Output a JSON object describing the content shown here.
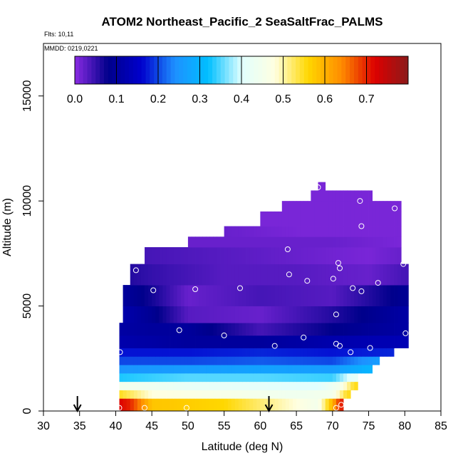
{
  "chart_data": {
    "type": "heatmap",
    "title": "ATOM2 Northeast_Pacific_2 SeaSaltFrac_PALMS",
    "flights_label": "Flts: 10,11",
    "dates_label": "MMDD: 0219,0221",
    "xlabel": "Latitude (deg N)",
    "ylabel": "Altitude (m)",
    "xlim": [
      30,
      85
    ],
    "ylim": [
      0,
      17500
    ],
    "x_ticks": [
      30,
      35,
      40,
      45,
      50,
      55,
      60,
      65,
      70,
      75,
      80,
      85
    ],
    "y_ticks": [
      0,
      5000,
      10000,
      15000
    ],
    "colorbar": {
      "min": 0.0,
      "max": 0.8,
      "tick_values": [
        0.0,
        0.1,
        0.2,
        0.3,
        0.4,
        0.5,
        0.6,
        0.7
      ],
      "tick_labels": [
        "0.0",
        "0.1",
        "0.2",
        "0.3",
        "0.4",
        "0.5",
        "0.6",
        "0.7"
      ]
    },
    "color_stops": [
      "#8a2be2",
      "#00008b",
      "#0000cd",
      "#1e90ff",
      "#00bfff",
      "#e0ffff",
      "#ffffe0",
      "#ffd700",
      "#ff8c00",
      "#dd0000",
      "#8b1a1a"
    ],
    "profiles": [
      {
        "name": "0-600 m",
        "values": [
          [
            40.5,
            0.72
          ],
          [
            42,
            0.7
          ],
          [
            45,
            0.58
          ],
          [
            50,
            0.57
          ],
          [
            55,
            0.56
          ],
          [
            60,
            0.52
          ],
          [
            65,
            0.48
          ],
          [
            68,
            0.45
          ],
          [
            70,
            0.6
          ],
          [
            71,
            0.7
          ]
        ]
      },
      {
        "name": "600-1000 m",
        "values": [
          [
            40.5,
            0.55
          ],
          [
            45,
            0.48
          ],
          [
            55,
            0.46
          ],
          [
            65,
            0.44
          ],
          [
            70,
            0.45
          ],
          [
            72,
            0.55
          ]
        ]
      },
      {
        "name": "1000-1400 m",
        "values": [
          [
            40.5,
            0.45
          ],
          [
            50,
            0.42
          ],
          [
            60,
            0.41
          ],
          [
            68,
            0.4
          ],
          [
            71,
            0.45
          ],
          [
            73,
            0.55
          ]
        ]
      },
      {
        "name": "1400-1800 m",
        "values": [
          [
            40.5,
            0.33
          ],
          [
            50,
            0.35
          ],
          [
            60,
            0.35
          ],
          [
            70,
            0.34
          ],
          [
            73,
            0.42
          ]
        ]
      },
      {
        "name": "1800-2200 m",
        "values": [
          [
            40.5,
            0.25
          ],
          [
            50,
            0.26
          ],
          [
            60,
            0.27
          ],
          [
            70,
            0.26
          ],
          [
            75,
            0.3
          ]
        ]
      },
      {
        "name": "2200-2600 m",
        "values": [
          [
            40.5,
            0.2
          ],
          [
            50,
            0.2
          ],
          [
            60,
            0.21
          ],
          [
            70,
            0.2
          ],
          [
            76,
            0.26
          ]
        ]
      },
      {
        "name": "2600-3000 m",
        "values": [
          [
            40.5,
            0.17
          ],
          [
            50,
            0.17
          ],
          [
            60,
            0.18
          ],
          [
            70,
            0.17
          ],
          [
            78,
            0.18
          ]
        ]
      },
      {
        "name": "3000-3600 m",
        "values": [
          [
            40.5,
            0.12
          ],
          [
            50,
            0.1
          ],
          [
            60,
            0.1
          ],
          [
            70,
            0.12
          ],
          [
            80,
            0.13
          ]
        ]
      },
      {
        "name": "3600-4200 m",
        "values": [
          [
            40.5,
            0.11
          ],
          [
            45,
            0.1
          ],
          [
            50,
            0.1
          ],
          [
            60,
            0.04
          ],
          [
            70,
            0.08
          ],
          [
            80,
            0.11
          ]
        ]
      },
      {
        "name": "4200-5000 m",
        "values": [
          [
            41,
            0.12
          ],
          [
            45,
            0.09
          ],
          [
            50,
            0.03
          ],
          [
            60,
            0.02
          ],
          [
            70,
            0.06
          ],
          [
            80,
            0.11
          ]
        ]
      },
      {
        "name": "5000-6000 m",
        "values": [
          [
            41,
            0.1
          ],
          [
            45,
            0.07
          ],
          [
            50,
            0.02
          ],
          [
            60,
            0.04
          ],
          [
            70,
            0.03
          ],
          [
            80,
            0.09
          ]
        ]
      },
      {
        "name": "6000-7000 m",
        "values": [
          [
            42,
            0.06
          ],
          [
            45,
            0.05
          ],
          [
            55,
            0.03
          ],
          [
            65,
            0.03
          ],
          [
            75,
            0.02
          ],
          [
            80,
            0.04
          ]
        ]
      },
      {
        "name": "7000-7800 m",
        "values": [
          [
            44,
            0.04
          ],
          [
            55,
            0.03
          ],
          [
            65,
            0.02
          ],
          [
            75,
            0.01
          ],
          [
            79,
            0.02
          ]
        ]
      },
      {
        "name": "7800-8300 m",
        "values": [
          [
            50,
            0.02
          ],
          [
            60,
            0.02
          ],
          [
            70,
            0.02
          ],
          [
            79,
            0.01
          ]
        ]
      },
      {
        "name": "8300-8800 m",
        "values": [
          [
            55,
            0.02
          ],
          [
            65,
            0.01
          ],
          [
            75,
            0.01
          ],
          [
            79,
            0.01
          ]
        ]
      },
      {
        "name": "8800-9500 m",
        "values": [
          [
            60,
            0.01
          ],
          [
            70,
            0.01
          ],
          [
            79,
            0.01
          ]
        ]
      },
      {
        "name": "9500-10000 m",
        "values": [
          [
            63,
            0.01
          ],
          [
            70,
            0.01
          ],
          [
            79,
            0.01
          ]
        ]
      },
      {
        "name": "10000-10500 m",
        "values": [
          [
            67,
            0.01
          ],
          [
            75,
            0.01
          ]
        ]
      },
      {
        "name": "10500-10900 m",
        "values": [
          [
            68,
            0.01
          ]
        ]
      }
    ],
    "points": [
      {
        "lat": 40.5,
        "alt": 150
      },
      {
        "lat": 44,
        "alt": 150
      },
      {
        "lat": 49.8,
        "alt": 150
      },
      {
        "lat": 70.5,
        "alt": 150
      },
      {
        "lat": 71.2,
        "alt": 300
      },
      {
        "lat": 40.6,
        "alt": 2800
      },
      {
        "lat": 62,
        "alt": 3100
      },
      {
        "lat": 70.5,
        "alt": 3200
      },
      {
        "lat": 71,
        "alt": 3100
      },
      {
        "lat": 72.5,
        "alt": 2800
      },
      {
        "lat": 75.2,
        "alt": 3000
      },
      {
        "lat": 48.8,
        "alt": 3850
      },
      {
        "lat": 55,
        "alt": 3600
      },
      {
        "lat": 66,
        "alt": 3500
      },
      {
        "lat": 80.1,
        "alt": 3700
      },
      {
        "lat": 70.5,
        "alt": 4600
      },
      {
        "lat": 45.2,
        "alt": 5750
      },
      {
        "lat": 51,
        "alt": 5800
      },
      {
        "lat": 57.2,
        "alt": 5850
      },
      {
        "lat": 72.8,
        "alt": 5850
      },
      {
        "lat": 74,
        "alt": 5700
      },
      {
        "lat": 76.3,
        "alt": 6100
      },
      {
        "lat": 66.5,
        "alt": 6200
      },
      {
        "lat": 70.1,
        "alt": 6300
      },
      {
        "lat": 64,
        "alt": 6500
      },
      {
        "lat": 71,
        "alt": 6800
      },
      {
        "lat": 42.8,
        "alt": 6700
      },
      {
        "lat": 70.8,
        "alt": 7050
      },
      {
        "lat": 79.8,
        "alt": 7000
      },
      {
        "lat": 63.8,
        "alt": 7700
      },
      {
        "lat": 74,
        "alt": 8800
      },
      {
        "lat": 78.6,
        "alt": 9650
      },
      {
        "lat": 73.8,
        "alt": 10000
      },
      {
        "lat": 68,
        "alt": 10650
      }
    ],
    "arrows": [
      {
        "lat": 34.7
      },
      {
        "lat": 61.2
      }
    ]
  }
}
